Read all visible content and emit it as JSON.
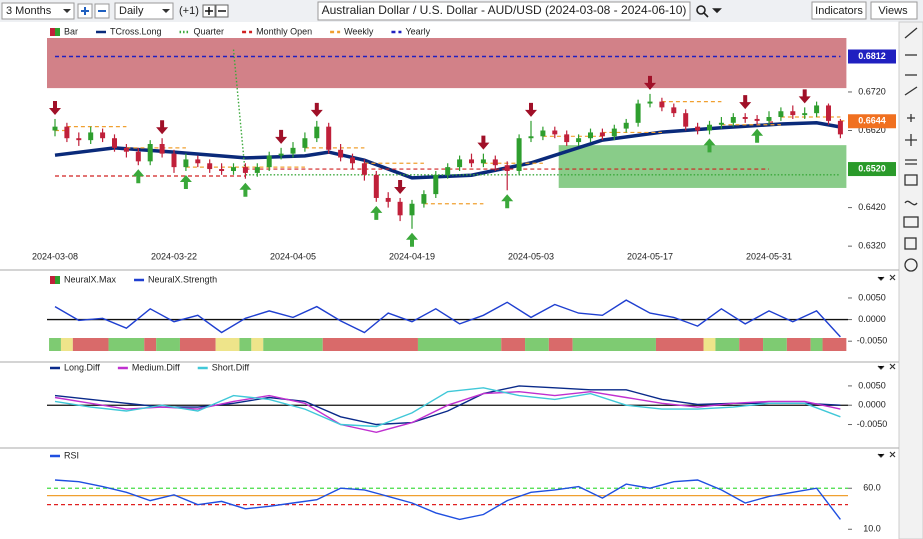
{
  "toolbar": {
    "range": "3 Months",
    "interval": "Daily",
    "offset": "(+1)",
    "title": "Australian Dollar / U.S. Dollar - AUD/USD (2024-03-08 - 2024-06-10)",
    "indicators": "Indicators",
    "views": "Views"
  },
  "chart_data": [
    {
      "type": "ohlc",
      "bar_name": "Bar",
      "up_color": "#2e9e2e",
      "down_color": "#c0203a",
      "categories": [
        "2024-03-08",
        null,
        null,
        null,
        null,
        null,
        null,
        null,
        null,
        null,
        "2024-03-22",
        null,
        null,
        null,
        null,
        null,
        null,
        null,
        null,
        null,
        "2024-04-05",
        null,
        null,
        null,
        null,
        null,
        null,
        null,
        null,
        null,
        "2024-04-19",
        null,
        null,
        null,
        null,
        null,
        null,
        null,
        null,
        null,
        "2024-05-03",
        null,
        null,
        null,
        null,
        null,
        null,
        null,
        null,
        null,
        "2024-05-17",
        null,
        null,
        null,
        null,
        null,
        null,
        null,
        null,
        null,
        "2024-05-31",
        null,
        null,
        null,
        null,
        null,
        null
      ],
      "open": [
        0.662,
        0.663,
        0.66,
        0.6595,
        0.6615,
        0.66,
        0.6575,
        0.6565,
        0.654,
        0.6585,
        0.656,
        0.6525,
        0.6545,
        0.6535,
        0.652,
        0.6515,
        0.6525,
        0.651,
        0.6525,
        0.6555,
        0.656,
        0.6575,
        0.66,
        0.663,
        0.657,
        0.655,
        0.6535,
        0.6505,
        0.6445,
        0.6435,
        0.64,
        0.643,
        0.6455,
        0.6505,
        0.6525,
        0.6545,
        0.6535,
        0.6545,
        0.653,
        0.6515,
        0.66,
        0.6605,
        0.662,
        0.661,
        0.659,
        0.66,
        0.6615,
        0.6605,
        0.6625,
        0.664,
        0.669,
        0.6695,
        0.668,
        0.6665,
        0.663,
        0.662,
        0.6635,
        0.664,
        0.6655,
        0.665,
        0.6645,
        0.6655,
        0.667,
        0.666,
        0.6665,
        0.6685,
        0.6645
      ],
      "high": [
        0.665,
        0.664,
        0.6615,
        0.663,
        0.6625,
        0.661,
        0.6585,
        0.6575,
        0.6595,
        0.66,
        0.657,
        0.656,
        0.6555,
        0.6545,
        0.6535,
        0.6535,
        0.6535,
        0.6535,
        0.6565,
        0.6575,
        0.659,
        0.6615,
        0.6645,
        0.664,
        0.6585,
        0.656,
        0.6545,
        0.6515,
        0.646,
        0.6445,
        0.644,
        0.6465,
        0.6515,
        0.6535,
        0.6555,
        0.656,
        0.656,
        0.6555,
        0.654,
        0.661,
        0.6645,
        0.663,
        0.663,
        0.662,
        0.661,
        0.6625,
        0.6625,
        0.6635,
        0.665,
        0.67,
        0.6715,
        0.6705,
        0.669,
        0.6675,
        0.664,
        0.6645,
        0.6655,
        0.6665,
        0.6665,
        0.666,
        0.667,
        0.668,
        0.6685,
        0.668,
        0.6695,
        0.669,
        0.665
      ],
      "low": [
        0.6605,
        0.659,
        0.658,
        0.6585,
        0.659,
        0.6565,
        0.655,
        0.653,
        0.653,
        0.655,
        0.651,
        0.6515,
        0.6525,
        0.651,
        0.6505,
        0.6505,
        0.6495,
        0.65,
        0.6515,
        0.6545,
        0.655,
        0.6565,
        0.659,
        0.656,
        0.654,
        0.652,
        0.649,
        0.6435,
        0.642,
        0.6385,
        0.6365,
        0.642,
        0.6445,
        0.6495,
        0.6515,
        0.6525,
        0.6525,
        0.6515,
        0.6465,
        0.6505,
        0.659,
        0.6595,
        0.66,
        0.658,
        0.658,
        0.659,
        0.6595,
        0.6595,
        0.6615,
        0.663,
        0.668,
        0.667,
        0.6655,
        0.662,
        0.661,
        0.661,
        0.6625,
        0.663,
        0.664,
        0.6635,
        0.6635,
        0.6645,
        0.665,
        0.665,
        0.6655,
        0.6635,
        0.66
      ],
      "close": [
        0.663,
        0.66,
        0.6595,
        0.6615,
        0.66,
        0.6575,
        0.6565,
        0.654,
        0.6585,
        0.656,
        0.6525,
        0.6545,
        0.6535,
        0.652,
        0.6515,
        0.6525,
        0.651,
        0.6525,
        0.6555,
        0.656,
        0.6575,
        0.66,
        0.663,
        0.657,
        0.655,
        0.6535,
        0.6505,
        0.6445,
        0.6435,
        0.64,
        0.643,
        0.6455,
        0.6505,
        0.6525,
        0.6545,
        0.6535,
        0.6545,
        0.653,
        0.6515,
        0.66,
        0.6605,
        0.662,
        0.661,
        0.659,
        0.66,
        0.6615,
        0.6605,
        0.6625,
        0.664,
        0.669,
        0.6695,
        0.668,
        0.6665,
        0.663,
        0.662,
        0.6635,
        0.664,
        0.6655,
        0.665,
        0.6645,
        0.6655,
        0.667,
        0.666,
        0.6665,
        0.6685,
        0.6645,
        0.661
      ],
      "series": [
        {
          "name": "TCross.Long",
          "color": "#0a2a7a",
          "style": "solid",
          "x": [
            0,
            5,
            10,
            16,
            21,
            23,
            26,
            30,
            35,
            40,
            46,
            51,
            56,
            61,
            64,
            66
          ],
          "values": [
            0.6556,
            0.6575,
            0.6564,
            0.6549,
            0.6554,
            0.6564,
            0.6543,
            0.6497,
            0.6504,
            0.6536,
            0.6595,
            0.6616,
            0.6627,
            0.6637,
            0.664,
            0.6629
          ]
        },
        {
          "name": "Quarter",
          "color": "#3aa83a",
          "style": "dotted",
          "x": [
            15,
            16,
            66
          ],
          "values": [
            0.683,
            0.6505,
            0.6505
          ]
        },
        {
          "name": "Monthly Open",
          "color": "#d02020",
          "style": "dashed",
          "step": true,
          "x": [
            0,
            16,
            37,
            60
          ],
          "values": [
            0.6502,
            0.652,
            0.652,
            0.6642
          ]
        },
        {
          "name": "Weekly",
          "color": "#f0a030",
          "style": "dashed",
          "step": true,
          "x": [
            0,
            1,
            6,
            11,
            16,
            21,
            26,
            31,
            36,
            41,
            46,
            51,
            56,
            61,
            66
          ],
          "values": [
            0.662,
            0.663,
            0.6575,
            0.6525,
            0.6525,
            0.6575,
            0.6535,
            0.643,
            0.6535,
            0.6605,
            0.6615,
            0.6695,
            0.6635,
            0.6655,
            0.6645
          ]
        },
        {
          "name": "Yearly",
          "color": "#2020c0",
          "style": "dashed",
          "x": [
            0,
            66
          ],
          "values": [
            0.6812,
            0.6812
          ]
        }
      ],
      "zones": [
        {
          "color": "#c0505a",
          "x": [
            0,
            66
          ],
          "range": [
            0.673,
            0.686
          ]
        },
        {
          "color": "#5cb85c",
          "x": [
            43,
            66
          ],
          "range": [
            0.6471,
            0.6582
          ]
        }
      ],
      "sell_signals": [
        0,
        9,
        19,
        22,
        29,
        36,
        40,
        50,
        58,
        63
      ],
      "buy_signals": [
        7,
        11,
        16,
        27,
        30,
        38,
        55,
        59
      ],
      "price_labels": [
        {
          "value": 0.6812,
          "color": "#2020c0"
        },
        {
          "value": 0.6644,
          "label": "0.6644",
          "color": "#f07020"
        },
        {
          "value": 0.652,
          "label": "0.6520",
          "color": "#2a9a2a"
        }
      ],
      "ylim": [
        0.631,
        0.686
      ],
      "yticks": [
        {
          "value": 0.632,
          "label": "0.6320"
        },
        {
          "value": 0.642,
          "label": "0.6420"
        },
        {
          "value": 0.652,
          "label": "0.6520"
        },
        {
          "value": 0.662,
          "label": "0.6620"
        },
        {
          "value": 0.672,
          "label": "0.6720"
        }
      ]
    },
    {
      "type": "line",
      "hline": 0,
      "bars": {
        "name": "NeuralX.Max",
        "runs": [
          {
            "start": 0,
            "end": 0,
            "color": "#7ecb72"
          },
          {
            "start": 1,
            "end": 1,
            "color": "#eee48a"
          },
          {
            "start": 2,
            "end": 4,
            "color": "#d96a6a"
          },
          {
            "start": 5,
            "end": 7,
            "color": "#7ecb72"
          },
          {
            "start": 8,
            "end": 8,
            "color": "#d96a6a"
          },
          {
            "start": 9,
            "end": 10,
            "color": "#7ecb72"
          },
          {
            "start": 11,
            "end": 13,
            "color": "#d96a6a"
          },
          {
            "start": 14,
            "end": 15,
            "color": "#eee48a"
          },
          {
            "start": 16,
            "end": 16,
            "color": "#7ecb72"
          },
          {
            "start": 17,
            "end": 17,
            "color": "#eee48a"
          },
          {
            "start": 18,
            "end": 22,
            "color": "#7ecb72"
          },
          {
            "start": 23,
            "end": 30,
            "color": "#d96a6a"
          },
          {
            "start": 31,
            "end": 37,
            "color": "#7ecb72"
          },
          {
            "start": 38,
            "end": 39,
            "color": "#d96a6a"
          },
          {
            "start": 40,
            "end": 41,
            "color": "#7ecb72"
          },
          {
            "start": 42,
            "end": 43,
            "color": "#d96a6a"
          },
          {
            "start": 44,
            "end": 50,
            "color": "#7ecb72"
          },
          {
            "start": 51,
            "end": 54,
            "color": "#d96a6a"
          },
          {
            "start": 55,
            "end": 55,
            "color": "#eee48a"
          },
          {
            "start": 56,
            "end": 57,
            "color": "#7ecb72"
          },
          {
            "start": 58,
            "end": 59,
            "color": "#d96a6a"
          },
          {
            "start": 60,
            "end": 61,
            "color": "#7ecb72"
          },
          {
            "start": 62,
            "end": 63,
            "color": "#d96a6a"
          },
          {
            "start": 64,
            "end": 64,
            "color": "#7ecb72"
          },
          {
            "start": 65,
            "end": 66,
            "color": "#d96a6a"
          }
        ]
      },
      "series": [
        {
          "name": "NeuralX.Strength",
          "color": "#1f3fd0",
          "style": "solid",
          "x": [
            0,
            2,
            4,
            6,
            8,
            10,
            12,
            14,
            16,
            18,
            20,
            22,
            24,
            26,
            28,
            30,
            32,
            34,
            36,
            38,
            40,
            42,
            44,
            46,
            48,
            50,
            52,
            54,
            56,
            58,
            60,
            62,
            64,
            66
          ],
          "values": [
            0.003,
            -0.0002,
            0.0003,
            -0.002,
            0.0025,
            -0.0005,
            0.001,
            -0.003,
            0.0003,
            0.002,
            0.0005,
            0.003,
            -0.0003,
            -0.003,
            0.0015,
            -0.0005,
            0.0025,
            -0.001,
            0.001,
            0.004,
            0.0005,
            0.0035,
            0.0015,
            0.001,
            0.0045,
            0.0015,
            0.0005,
            -0.0015,
            0.0025,
            -0.001,
            0.002,
            -0.0005,
            0.002,
            -0.004
          ]
        }
      ],
      "ylim": [
        -0.0075,
        0.008
      ],
      "yticks": [
        {
          "value": -0.005,
          "label": "-0.0050"
        },
        {
          "value": 0,
          "label": "0.0000"
        },
        {
          "value": 0.005,
          "label": "0.0050"
        }
      ]
    },
    {
      "type": "line",
      "hline": 0,
      "series": [
        {
          "name": "Long.Diff",
          "color": "#0a2a8a",
          "style": "solid",
          "x": [
            0,
            3,
            6,
            9,
            12,
            15,
            18,
            21,
            24,
            27,
            30,
            33,
            36,
            39,
            42,
            45,
            48,
            51,
            54,
            57,
            60,
            63,
            66
          ],
          "values": [
            0.0025,
            0.0015,
            0.0005,
            -0.0005,
            -0.0005,
            0.0005,
            0.002,
            0.001,
            -0.003,
            -0.005,
            -0.0045,
            -0.0015,
            0.003,
            0.005,
            0.0045,
            0.004,
            0.004,
            0.0015,
            0.0002,
            0.0005,
            0.0005,
            0.0005,
            0
          ]
        },
        {
          "name": "Medium.Diff",
          "color": "#c030d0",
          "style": "solid",
          "x": [
            0,
            3,
            6,
            9,
            12,
            15,
            18,
            21,
            24,
            27,
            30,
            33,
            36,
            39,
            42,
            45,
            48,
            51,
            54,
            57,
            60,
            63,
            66
          ],
          "values": [
            0.002,
            0.0005,
            -0.001,
            -0.0005,
            -0.001,
            0.001,
            0.0025,
            0.0005,
            -0.005,
            -0.007,
            -0.0045,
            0,
            0.003,
            0.0035,
            0.0025,
            0.0035,
            0.002,
            0.0005,
            -0.0005,
            0.0005,
            0.001,
            0.001,
            -0.001
          ]
        },
        {
          "name": "Short.Diff",
          "color": "#40c8d8",
          "style": "solid",
          "x": [
            0,
            3,
            6,
            9,
            12,
            15,
            18,
            21,
            24,
            27,
            30,
            33,
            36,
            39,
            42,
            45,
            48,
            51,
            54,
            57,
            60,
            63,
            66
          ],
          "values": [
            0.001,
            -0.0005,
            -0.0015,
            0,
            -0.0015,
            0.0025,
            0.0015,
            -0.001,
            -0.005,
            -0.0055,
            -0.002,
            0.0035,
            0.0045,
            0.0025,
            0.0015,
            0.003,
            0,
            -0.001,
            -0.001,
            -0.0005,
            0.0005,
            0.0005,
            -0.003
          ]
        }
      ],
      "ylim": [
        -0.0103,
        0.0086
      ],
      "yticks": [
        {
          "value": -0.005,
          "label": "-0.0050"
        },
        {
          "value": 0,
          "label": "0.0000"
        },
        {
          "value": 0.005,
          "label": "0.0050"
        }
      ]
    },
    {
      "type": "line",
      "levels": [
        {
          "value": 60,
          "color": "#44dd44",
          "style": "dashed"
        },
        {
          "value": 51,
          "color": "#f0a030",
          "style": "solid"
        },
        {
          "value": 40,
          "color": "#e02020",
          "style": "dashed"
        }
      ],
      "series": [
        {
          "name": "RSI",
          "color": "#1f4fe0",
          "style": "solid",
          "x": [
            0,
            2,
            4,
            6,
            8,
            10,
            12,
            14,
            16,
            18,
            20,
            22,
            24,
            26,
            28,
            30,
            32,
            34,
            36,
            38,
            40,
            42,
            44,
            46,
            48,
            50,
            52,
            54,
            56,
            58,
            60,
            62,
            64,
            66
          ],
          "values": [
            70,
            68,
            62,
            55,
            45,
            52,
            40,
            44,
            35,
            38,
            42,
            46,
            60,
            58,
            50,
            42,
            30,
            22,
            28,
            45,
            55,
            58,
            62,
            48,
            65,
            60,
            68,
            70,
            58,
            42,
            50,
            55,
            60,
            22
          ]
        }
      ],
      "ylim": [
        3,
        92
      ],
      "yticks": [
        {
          "value": 10,
          "label": "10.0"
        },
        {
          "value": 60,
          "label": "60.0"
        }
      ]
    }
  ]
}
